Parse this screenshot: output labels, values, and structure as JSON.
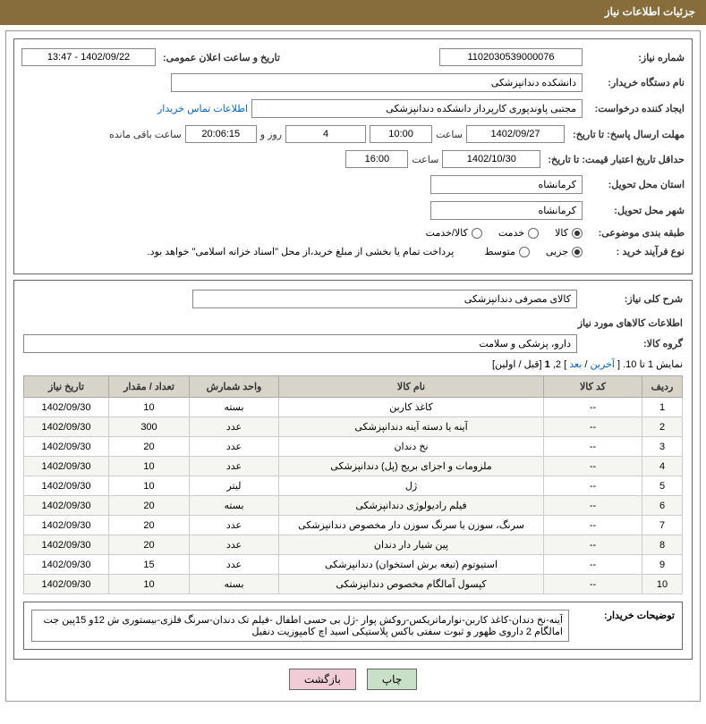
{
  "header": {
    "title": "جزئیات اطلاعات نیاز"
  },
  "form": {
    "need_number_label": "شماره نیاز:",
    "need_number": "1102030539000076",
    "announce_date_label": "تاریخ و ساعت اعلان عمومی:",
    "announce_date": "1402/09/22 - 13:47",
    "buyer_org_label": "نام دستگاه خریدار:",
    "buyer_org": "دانشکده دندانپزشکی",
    "requester_label": "ایجاد کننده درخواست:",
    "requester": "مجتبی  پاوندپوری کارپرداز دانشکده دندانپزشکی",
    "buyer_contact_link": "اطلاعات تماس خریدار",
    "deadline_label": "مهلت ارسال پاسخ: تا تاریخ:",
    "deadline_date": "1402/09/27",
    "time_label": "ساعت",
    "deadline_time": "10:00",
    "days_count": "4",
    "days_text": "روز و",
    "remaining_time": "20:06:15",
    "remaining_text": "ساعت باقی مانده",
    "validity_label": "حداقل تاریخ اعتبار قیمت: تا تاریخ:",
    "validity_date": "1402/10/30",
    "validity_time": "16:00",
    "province_label": "استان محل تحویل:",
    "province": "کرمانشاه",
    "city_label": "شهر محل تحویل:",
    "city": "کرمانشاه",
    "category_label": "طبقه بندی موضوعی:",
    "cat_goods": "کالا",
    "cat_service": "خدمت",
    "cat_both": "کالا/خدمت",
    "purchase_type_label": "نوع فرآیند خرید :",
    "pt_minor": "جزیی",
    "pt_medium": "متوسط",
    "payment_note": "پرداخت تمام یا بخشی از مبلغ خرید،از محل \"اسناد خزانه اسلامی\" خواهد بود."
  },
  "desc": {
    "overall_label": "شرح کلی نیاز:",
    "overall_value": "کالای مصرفی دندانپزشکی",
    "items_title": "اطلاعات کالاهای مورد نیاز",
    "group_label": "گروه کالا:",
    "group_value": "دارو، پزشکی و سلامت"
  },
  "pagination": {
    "display_text": "نمایش 1 تا 10. [",
    "last": "آخرین",
    "sep1": " / ",
    "next": "بعد",
    "page2": "] 2, ",
    "page1": "1",
    "prev_first": " [قبل / اولین]"
  },
  "table": {
    "headers": {
      "row": "ردیف",
      "code": "کد کالا",
      "name": "نام کالا",
      "unit": "واحد شمارش",
      "qty": "تعداد / مقدار",
      "date": "تاریخ نیاز"
    },
    "rows": [
      {
        "n": "1",
        "code": "--",
        "name": "کاغذ کاربن",
        "unit": "بسته",
        "qty": "10",
        "date": "1402/09/30"
      },
      {
        "n": "2",
        "code": "--",
        "name": "آینه یا دسته آینه دندانپزشکی",
        "unit": "عدد",
        "qty": "300",
        "date": "1402/09/30"
      },
      {
        "n": "3",
        "code": "--",
        "name": "نخ دندان",
        "unit": "عدد",
        "qty": "20",
        "date": "1402/09/30"
      },
      {
        "n": "4",
        "code": "--",
        "name": "ملزومات و اجزای بریج (پل) دندانپزشکی",
        "unit": "عدد",
        "qty": "10",
        "date": "1402/09/30"
      },
      {
        "n": "5",
        "code": "--",
        "name": "ژل",
        "unit": "لیتر",
        "qty": "10",
        "date": "1402/09/30"
      },
      {
        "n": "6",
        "code": "--",
        "name": "فیلم رادیولوژی دندانپزشکی",
        "unit": "بسته",
        "qty": "20",
        "date": "1402/09/30"
      },
      {
        "n": "7",
        "code": "--",
        "name": "سرنگ، سوزن یا سرنگ سوزن دار مخصوص دندانپزشکی",
        "unit": "عدد",
        "qty": "20",
        "date": "1402/09/30"
      },
      {
        "n": "8",
        "code": "--",
        "name": "پین شیار دار دندان",
        "unit": "عدد",
        "qty": "20",
        "date": "1402/09/30"
      },
      {
        "n": "9",
        "code": "--",
        "name": "استیوتوم (تیغه برش استخوان) دندانپزشکی",
        "unit": "عدد",
        "qty": "15",
        "date": "1402/09/30"
      },
      {
        "n": "10",
        "code": "--",
        "name": "کپسول آمالگام مخصوص دندانپزشکی",
        "unit": "بسته",
        "qty": "10",
        "date": "1402/09/30"
      }
    ]
  },
  "explain": {
    "label": "توضیحات خریدار:",
    "text": "آینه-نخ دندان-کاغذ کاربن-نوارماتریکس-روکش پوار -ژل بی حسی اطفال  -فیلم تک دندان-سرنگ فلزی-بیستوری  ش 12و 15پین جت امالگام 2 داروی ظهور و ثبوت  سفتی باکس پلاستیکی  اسید اچ کامپوزیت دنفیل"
  },
  "buttons": {
    "print": "چاپ",
    "back": "بازگشت"
  },
  "colors": {
    "header_bg": "#876c3c",
    "th_bg": "#d9d4c9",
    "link": "#0066cc"
  }
}
